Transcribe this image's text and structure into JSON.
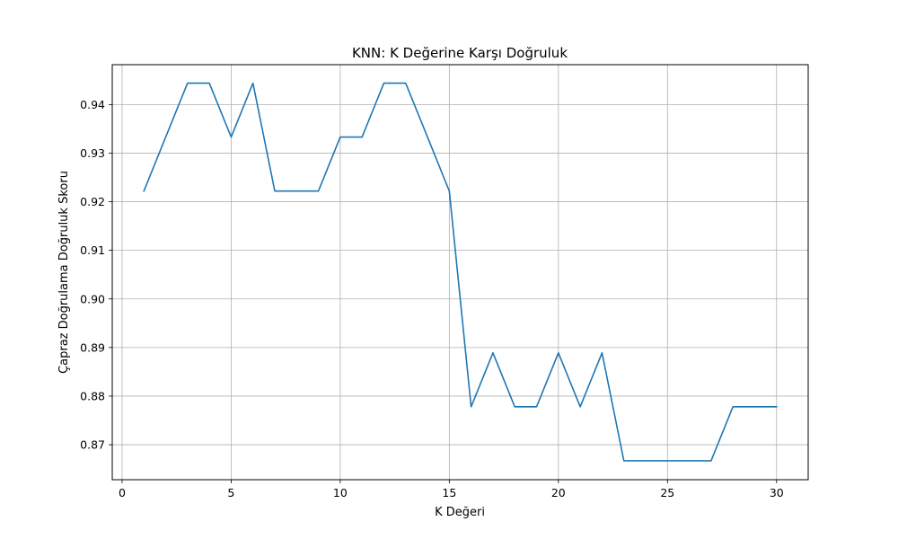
{
  "chart_data": {
    "type": "line",
    "title": "KNN: K Değerine Karşı Doğruluk",
    "xlabel": "K Değeri",
    "ylabel": "Çapraz Doğrulama Doğruluk Skoru",
    "xlim": [
      -0.45,
      31.45
    ],
    "ylim": [
      0.8628,
      0.9482
    ],
    "xticks": [
      0,
      5,
      10,
      15,
      20,
      25,
      30
    ],
    "yticks": [
      0.87,
      0.88,
      0.89,
      0.9,
      0.91,
      0.92,
      0.93,
      0.94
    ],
    "ytick_labels": [
      "0.87",
      "0.88",
      "0.89",
      "0.90",
      "0.91",
      "0.92",
      "0.93",
      "0.94"
    ],
    "grid": true,
    "line_color": "#1f77b4",
    "x": [
      1,
      2,
      3,
      4,
      5,
      6,
      7,
      8,
      9,
      10,
      11,
      12,
      13,
      14,
      15,
      16,
      17,
      18,
      19,
      20,
      21,
      22,
      23,
      24,
      25,
      26,
      27,
      28,
      29,
      30
    ],
    "values": [
      0.9222,
      0.9333,
      0.9444,
      0.9444,
      0.9333,
      0.9444,
      0.9222,
      0.9222,
      0.9222,
      0.9333,
      0.9333,
      0.9444,
      0.9444,
      0.9333,
      0.9222,
      0.8778,
      0.8889,
      0.8778,
      0.8778,
      0.8889,
      0.8778,
      0.8889,
      0.8667,
      0.8667,
      0.8667,
      0.8667,
      0.8667,
      0.8778,
      0.8778,
      0.8778
    ]
  }
}
